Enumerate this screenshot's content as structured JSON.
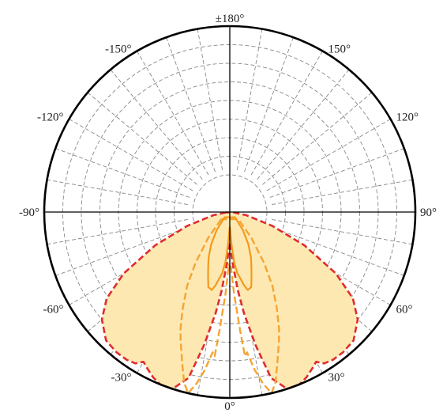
{
  "chart_data": {
    "type": "polar-area",
    "title": "",
    "angle_unit": "degrees",
    "angle_direction": "0° at bottom; positive angles toward the right side, negative toward the left",
    "angle_tick_labels": [
      {
        "angle": 0,
        "label": "0°"
      },
      {
        "angle": 30,
        "label": "30°"
      },
      {
        "angle": 60,
        "label": "60°"
      },
      {
        "angle": 90,
        "label": "90°"
      },
      {
        "angle": 120,
        "label": "120°"
      },
      {
        "angle": 150,
        "label": "150°"
      },
      {
        "angle": 180,
        "label": "±180°"
      },
      {
        "angle": -150,
        "label": "-150°"
      },
      {
        "angle": -120,
        "label": "-120°"
      },
      {
        "angle": -90,
        "label": "-90°"
      },
      {
        "angle": -60,
        "label": "-60°"
      },
      {
        "angle": -30,
        "label": "-30°"
      }
    ],
    "radial_grid": {
      "rings": [
        0.2,
        0.3,
        0.4,
        0.5,
        0.6,
        0.7,
        0.8,
        0.9
      ],
      "inner_hole": 0.23
    },
    "angular_grid_step_deg": 10,
    "grid": true,
    "colors": {
      "fill": "#fde8b2",
      "outer_envelope": "#e02d2d",
      "dashed_curve": "#f4a534",
      "solid_curve": "#f39a1e"
    },
    "series": [
      {
        "style": "red-dashed-envelope",
        "points": [
          [
            -84,
            0.02
          ],
          [
            -79,
            0.09
          ],
          [
            -72,
            0.24
          ],
          [
            -66,
            0.44
          ],
          [
            -60,
            0.66
          ],
          [
            -55,
            0.81
          ],
          [
            -50,
            0.9
          ],
          [
            -44,
            0.96
          ],
          [
            -39,
            0.97
          ],
          [
            -35,
            0.97
          ],
          [
            -32,
            0.96
          ],
          [
            -30,
            0.93
          ],
          [
            -28,
            0.95
          ],
          [
            -25,
            0.98
          ],
          [
            -22,
            1.0
          ],
          [
            -18,
            1.0
          ],
          [
            -14,
            0.92
          ],
          [
            -11,
            0.73
          ],
          [
            -8,
            0.55
          ],
          [
            -6,
            0.43
          ],
          [
            -3,
            0.27
          ],
          [
            0,
            0.16
          ],
          [
            3,
            0.27
          ],
          [
            6,
            0.43
          ],
          [
            8,
            0.55
          ],
          [
            11,
            0.73
          ],
          [
            14,
            0.92
          ],
          [
            18,
            1.0
          ],
          [
            22,
            1.0
          ],
          [
            25,
            0.98
          ],
          [
            28,
            0.95
          ],
          [
            30,
            0.93
          ],
          [
            32,
            0.96
          ],
          [
            35,
            0.97
          ],
          [
            39,
            0.97
          ],
          [
            44,
            0.96
          ],
          [
            50,
            0.9
          ],
          [
            55,
            0.81
          ],
          [
            60,
            0.66
          ],
          [
            66,
            0.44
          ],
          [
            72,
            0.24
          ],
          [
            79,
            0.09
          ],
          [
            84,
            0.02
          ]
        ]
      },
      {
        "style": "orange-dashed",
        "points": [
          [
            -50,
            0.06
          ],
          [
            -40,
            0.18
          ],
          [
            -34,
            0.33
          ],
          [
            -30,
            0.46
          ],
          [
            -26,
            0.58
          ],
          [
            -23,
            0.68
          ],
          [
            -21,
            0.74
          ],
          [
            -19,
            0.8
          ],
          [
            -17,
            0.87
          ],
          [
            -15,
            0.95
          ],
          [
            -13,
            1.0
          ],
          [
            -11,
            0.94
          ],
          [
            -9,
            0.86
          ],
          [
            -7,
            0.76
          ],
          [
            -6,
            0.78
          ],
          [
            -5,
            0.64
          ],
          [
            -3,
            0.44
          ],
          [
            -1,
            0.28
          ],
          [
            0,
            0.3
          ],
          [
            1,
            0.28
          ],
          [
            3,
            0.44
          ],
          [
            5,
            0.64
          ],
          [
            6,
            0.78
          ],
          [
            7,
            0.76
          ],
          [
            9,
            0.86
          ],
          [
            11,
            0.94
          ],
          [
            13,
            1.0
          ],
          [
            15,
            0.95
          ],
          [
            17,
            0.87
          ],
          [
            19,
            0.8
          ],
          [
            21,
            0.74
          ],
          [
            23,
            0.68
          ],
          [
            26,
            0.58
          ],
          [
            30,
            0.46
          ],
          [
            34,
            0.33
          ],
          [
            40,
            0.18
          ],
          [
            50,
            0.06
          ]
        ]
      },
      {
        "style": "orange-solid",
        "points": [
          [
            -45,
            0.04
          ],
          [
            -36,
            0.12
          ],
          [
            -30,
            0.2
          ],
          [
            -25,
            0.27
          ],
          [
            -22,
            0.31
          ],
          [
            -19,
            0.36
          ],
          [
            -16,
            0.42
          ],
          [
            -13,
            0.43
          ],
          [
            -11,
            0.4
          ],
          [
            -9,
            0.36
          ],
          [
            -7,
            0.33
          ],
          [
            -5,
            0.27
          ],
          [
            -3,
            0.17
          ],
          [
            -1,
            0.09
          ],
          [
            0,
            0.08
          ],
          [
            1,
            0.09
          ],
          [
            3,
            0.17
          ],
          [
            5,
            0.27
          ],
          [
            7,
            0.33
          ],
          [
            9,
            0.36
          ],
          [
            11,
            0.4
          ],
          [
            13,
            0.43
          ],
          [
            16,
            0.42
          ],
          [
            19,
            0.36
          ],
          [
            22,
            0.31
          ],
          [
            25,
            0.27
          ],
          [
            30,
            0.2
          ],
          [
            36,
            0.12
          ],
          [
            45,
            0.04
          ]
        ]
      }
    ]
  }
}
